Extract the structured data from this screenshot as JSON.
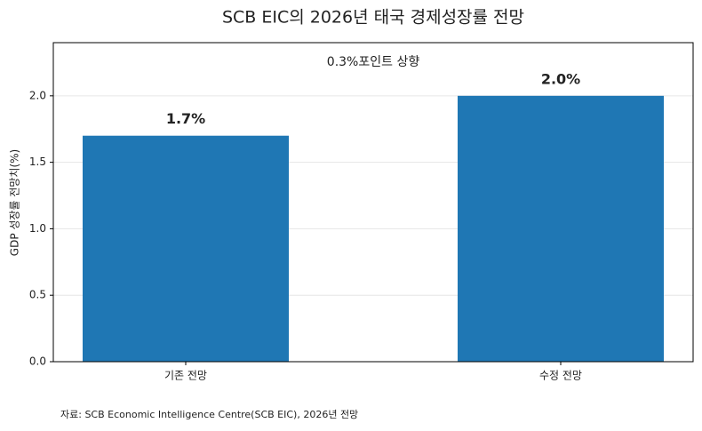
{
  "chart_data": {
    "type": "bar",
    "title": "SCB EIC의 2026년 태국 경제성장률 전망",
    "y_label": "GDP 성장률 전망치(%)",
    "categories": [
      "기존 전망",
      "수정 전망"
    ],
    "values": [
      1.7,
      2.0
    ],
    "value_labels": [
      "1.7%",
      "2.0%"
    ],
    "color": "#1f77b4",
    "ylim": [
      0,
      2.4
    ],
    "yticks": [
      {
        "value": 0,
        "label": "0.0"
      },
      {
        "value": 0.5,
        "label": "0.5"
      },
      {
        "value": 1,
        "label": "1.0"
      },
      {
        "value": 1.5,
        "label": "1.5"
      },
      {
        "value": 2,
        "label": "2.0"
      }
    ],
    "grid": true,
    "annotation": "0.3%포인트 상향",
    "source": "자료: SCB Economic Intelligence Centre(SCB EIC), 2026년 전망"
  }
}
